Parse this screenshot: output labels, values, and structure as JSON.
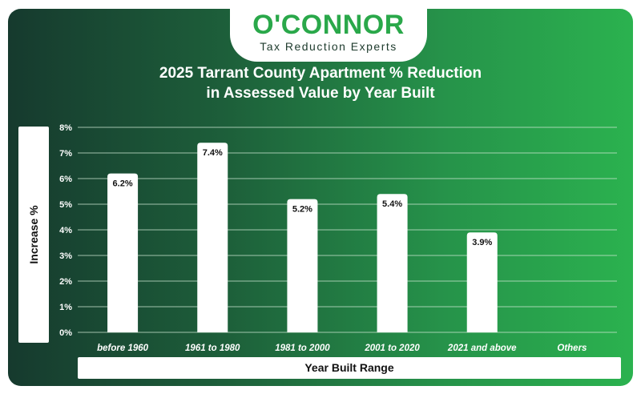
{
  "logo": {
    "brand": "O'CONNOR",
    "tagline": "Tax Reduction Experts"
  },
  "chart_data": {
    "type": "bar",
    "title_line1": "2025 Tarrant County Apartment % Reduction",
    "title_line2": "in Assessed Value by Year Built",
    "xlabel": "Year Built Range",
    "ylabel": "Increase %",
    "categories": [
      "before 1960",
      "1961 to 1980",
      "1981 to 2000",
      "2001 to 2020",
      "2021 and above",
      "Others"
    ],
    "values": [
      6.2,
      7.4,
      5.2,
      5.4,
      3.9,
      null
    ],
    "value_labels": [
      "6.2%",
      "7.4%",
      "5.2%",
      "5.4%",
      "3.9%",
      ""
    ],
    "ylim": [
      0,
      8
    ],
    "yticks": [
      0,
      1,
      2,
      3,
      4,
      5,
      6,
      7,
      8
    ],
    "ytick_labels": [
      "0%",
      "1%",
      "2%",
      "3%",
      "4%",
      "5%",
      "6%",
      "7%",
      "8%"
    ],
    "grid": true,
    "colors": {
      "bar": "#ffffff",
      "grid": "#cfe8d4",
      "text": "#ffffff",
      "label": "#111111"
    }
  }
}
